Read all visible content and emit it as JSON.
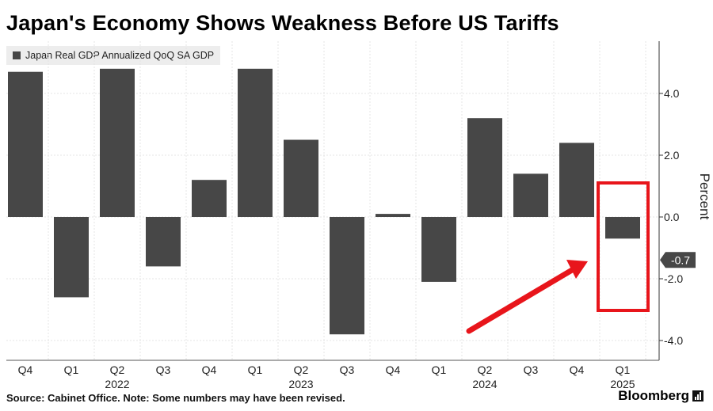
{
  "title": "Japan's Economy Shows Weakness Before US Tariffs",
  "source_note": "Source: Cabinet Office. Note: Some numbers may have been revised.",
  "brand": "Bloomberg",
  "chart_data": {
    "type": "bar",
    "title": "Japan's Economy Shows Weakness Before US Tariffs",
    "legend": [
      "Japan Real GDP Annualized QoQ SA GDP"
    ],
    "categories": [
      "Q4",
      "Q1",
      "Q2",
      "Q3",
      "Q4",
      "Q1",
      "Q2",
      "Q3",
      "Q4",
      "Q1",
      "Q2",
      "Q3",
      "Q4",
      "Q1"
    ],
    "year_labels": [
      {
        "label": "2022",
        "category_index": 2
      },
      {
        "label": "2023",
        "category_index": 6
      },
      {
        "label": "2024",
        "category_index": 10
      },
      {
        "label": "2025",
        "category_index": 13
      }
    ],
    "series": [
      {
        "name": "Japan Real GDP Annualized QoQ SA GDP",
        "values": [
          4.7,
          -2.6,
          4.8,
          -1.6,
          1.2,
          4.8,
          2.5,
          -3.8,
          0.1,
          -2.1,
          3.2,
          1.4,
          2.4,
          -0.7
        ]
      }
    ],
    "ylabel": "Percent",
    "ylim": [
      -4.5,
      5.6
    ],
    "yticks": [
      4.0,
      2.0,
      0.0,
      -2.0,
      -4.0
    ],
    "ytick_labels": [
      "4.0",
      "2.0",
      "0.0",
      "-2.0",
      "-4.0"
    ],
    "last_value_label": "-0.7",
    "highlight": {
      "category_index": 13,
      "color": "#e8151b"
    },
    "bar_color": "#474747",
    "grid": true,
    "y_axis_side": "right"
  }
}
